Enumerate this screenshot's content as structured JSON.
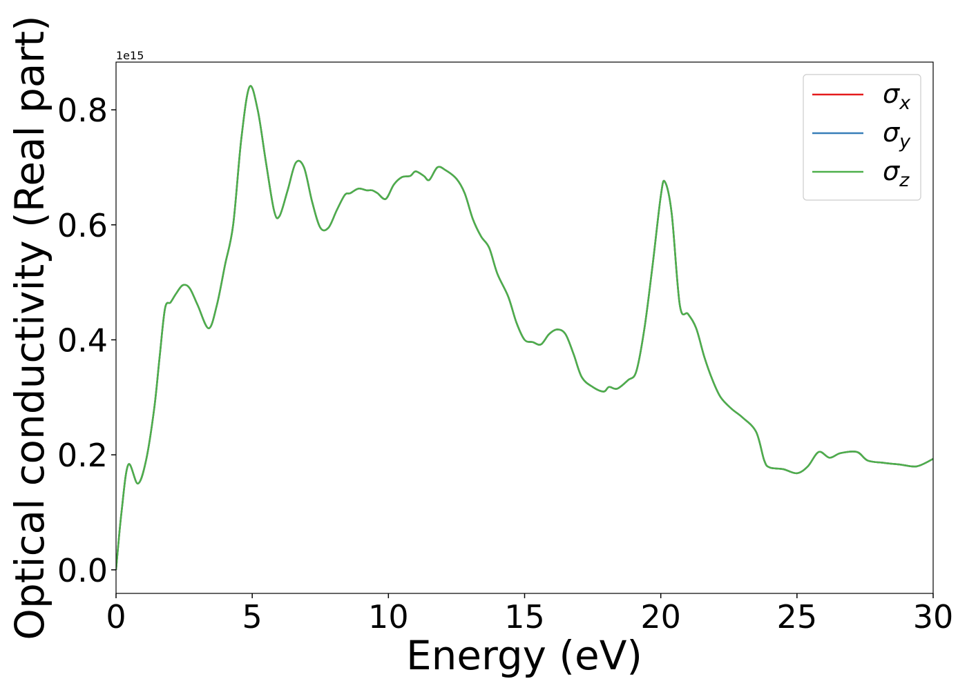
{
  "chart_data": {
    "type": "line",
    "xlabel": "Energy (eV)",
    "ylabel": "Optical conductivity (Real part)",
    "y_offset_label": "1e15",
    "x": [
      0,
      0.2,
      0.45,
      0.8,
      1.1,
      1.4,
      1.6,
      1.8,
      2.0,
      2.2,
      2.45,
      2.7,
      3.0,
      3.4,
      3.7,
      4.0,
      4.3,
      4.6,
      4.9,
      5.2,
      5.5,
      5.8,
      6.0,
      6.3,
      6.6,
      6.9,
      7.2,
      7.5,
      7.8,
      8.1,
      8.4,
      8.6,
      8.9,
      9.2,
      9.4,
      9.6,
      9.9,
      10.2,
      10.5,
      10.8,
      11.0,
      11.3,
      11.5,
      11.8,
      12.1,
      12.5,
      12.8,
      13.1,
      13.4,
      13.7,
      14.0,
      14.4,
      14.7,
      15.0,
      15.3,
      15.6,
      15.9,
      16.2,
      16.5,
      16.8,
      17.1,
      17.5,
      17.9,
      18.1,
      18.4,
      18.8,
      19.1,
      19.4,
      19.7,
      20.0,
      20.15,
      20.4,
      20.7,
      21.0,
      21.3,
      21.6,
      21.9,
      22.2,
      22.6,
      23.0,
      23.5,
      23.8,
      24.0,
      24.5,
      25.0,
      25.4,
      25.8,
      26.2,
      26.6,
      27.2,
      27.6,
      28.2,
      28.8,
      29.4,
      30.0
    ],
    "series": [
      {
        "name": "σx",
        "color": "#e41a1c",
        "values": [
          0.0,
          0.1,
          0.183,
          0.15,
          0.19,
          0.28,
          0.37,
          0.455,
          0.465,
          0.48,
          0.495,
          0.49,
          0.46,
          0.42,
          0.46,
          0.53,
          0.6,
          0.75,
          0.84,
          0.8,
          0.71,
          0.625,
          0.615,
          0.66,
          0.708,
          0.7,
          0.64,
          0.595,
          0.595,
          0.625,
          0.652,
          0.655,
          0.663,
          0.66,
          0.66,
          0.655,
          0.645,
          0.67,
          0.683,
          0.685,
          0.693,
          0.685,
          0.678,
          0.7,
          0.695,
          0.68,
          0.655,
          0.61,
          0.58,
          0.56,
          0.515,
          0.475,
          0.43,
          0.4,
          0.396,
          0.392,
          0.41,
          0.418,
          0.41,
          0.375,
          0.335,
          0.318,
          0.31,
          0.318,
          0.315,
          0.33,
          0.345,
          0.42,
          0.53,
          0.65,
          0.675,
          0.62,
          0.46,
          0.445,
          0.42,
          0.37,
          0.33,
          0.3,
          0.28,
          0.265,
          0.24,
          0.19,
          0.178,
          0.175,
          0.168,
          0.18,
          0.205,
          0.195,
          0.203,
          0.205,
          0.19,
          0.186,
          0.183,
          0.18,
          0.193
        ]
      },
      {
        "name": "σy",
        "color": "#377eb8",
        "values": [
          0.0,
          0.1,
          0.183,
          0.15,
          0.19,
          0.28,
          0.37,
          0.455,
          0.465,
          0.48,
          0.495,
          0.49,
          0.46,
          0.42,
          0.46,
          0.53,
          0.6,
          0.75,
          0.84,
          0.8,
          0.71,
          0.625,
          0.615,
          0.66,
          0.708,
          0.7,
          0.64,
          0.595,
          0.595,
          0.625,
          0.652,
          0.655,
          0.663,
          0.66,
          0.66,
          0.655,
          0.645,
          0.67,
          0.683,
          0.685,
          0.693,
          0.685,
          0.678,
          0.7,
          0.695,
          0.68,
          0.655,
          0.61,
          0.58,
          0.56,
          0.515,
          0.475,
          0.43,
          0.4,
          0.396,
          0.392,
          0.41,
          0.418,
          0.41,
          0.375,
          0.335,
          0.318,
          0.31,
          0.318,
          0.315,
          0.33,
          0.345,
          0.42,
          0.53,
          0.65,
          0.675,
          0.62,
          0.46,
          0.445,
          0.42,
          0.37,
          0.33,
          0.3,
          0.28,
          0.265,
          0.24,
          0.19,
          0.178,
          0.175,
          0.168,
          0.18,
          0.205,
          0.195,
          0.203,
          0.205,
          0.19,
          0.186,
          0.183,
          0.18,
          0.193
        ]
      },
      {
        "name": "σz",
        "color": "#4daf4a",
        "values": [
          0.0,
          0.1,
          0.183,
          0.15,
          0.19,
          0.28,
          0.37,
          0.455,
          0.465,
          0.48,
          0.495,
          0.49,
          0.46,
          0.42,
          0.46,
          0.53,
          0.6,
          0.75,
          0.84,
          0.8,
          0.71,
          0.625,
          0.615,
          0.66,
          0.708,
          0.7,
          0.64,
          0.595,
          0.595,
          0.625,
          0.652,
          0.655,
          0.663,
          0.66,
          0.66,
          0.655,
          0.645,
          0.67,
          0.683,
          0.685,
          0.693,
          0.685,
          0.678,
          0.7,
          0.695,
          0.68,
          0.655,
          0.61,
          0.58,
          0.56,
          0.515,
          0.475,
          0.43,
          0.4,
          0.396,
          0.392,
          0.41,
          0.418,
          0.41,
          0.375,
          0.335,
          0.318,
          0.31,
          0.318,
          0.315,
          0.33,
          0.345,
          0.42,
          0.53,
          0.65,
          0.675,
          0.62,
          0.46,
          0.445,
          0.42,
          0.37,
          0.33,
          0.3,
          0.28,
          0.265,
          0.24,
          0.19,
          0.178,
          0.175,
          0.168,
          0.18,
          0.205,
          0.195,
          0.203,
          0.205,
          0.19,
          0.186,
          0.183,
          0.18,
          0.193
        ]
      }
    ],
    "xlim": [
      0,
      30
    ],
    "xticks": [
      0,
      5,
      10,
      15,
      20,
      25,
      30
    ],
    "ylim": [
      -0.041,
      0.883
    ],
    "yticks": [
      {
        "value": 0,
        "label": "0.0"
      },
      {
        "value": 0.2,
        "label": "0.2"
      },
      {
        "value": 0.4,
        "label": "0.4"
      },
      {
        "value": 0.6,
        "label": "0.6"
      },
      {
        "value": 0.8,
        "label": "0.8"
      }
    ],
    "grid": false,
    "legend": "upper right"
  }
}
